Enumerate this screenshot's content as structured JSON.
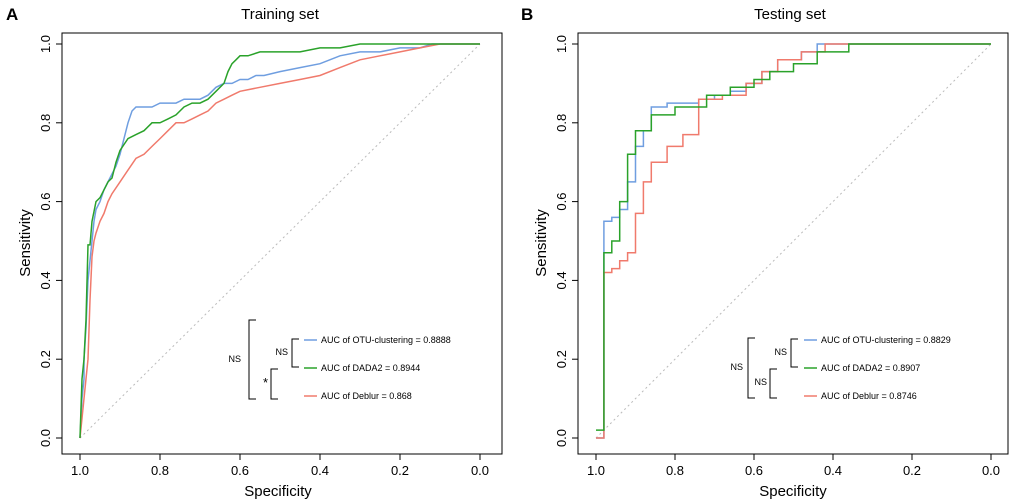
{
  "colors": {
    "otu": "#6f9ee0",
    "dada2": "#2aa22a",
    "deblur": "#f07a6c",
    "diagonal": "#bbbbbb",
    "axis": "#000000"
  },
  "chart_data": [
    {
      "type": "line",
      "panel_letter": "A",
      "title": "Training set",
      "xlabel": "Specificity",
      "ylabel": "Sensitivity",
      "xlim": [
        1.0,
        0.0
      ],
      "ylim": [
        0.0,
        1.0
      ],
      "x_ticks": [
        "1.0",
        "0.8",
        "0.6",
        "0.4",
        "0.2",
        "0.0"
      ],
      "y_ticks": [
        "0.0",
        "0.2",
        "0.4",
        "0.6",
        "0.8",
        "1.0"
      ],
      "diagonal": true,
      "legend_position": "bottom-right",
      "series": [
        {
          "key": "otu",
          "name": "AUC of OTU-clustering = 0.8888",
          "x": [
            1.0,
            0.995,
            0.99,
            0.99,
            0.985,
            0.98,
            0.975,
            0.97,
            0.965,
            0.96,
            0.95,
            0.94,
            0.93,
            0.92,
            0.91,
            0.9,
            0.89,
            0.88,
            0.87,
            0.86,
            0.85,
            0.84,
            0.83,
            0.82,
            0.8,
            0.78,
            0.76,
            0.74,
            0.72,
            0.7,
            0.68,
            0.66,
            0.64,
            0.62,
            0.6,
            0.58,
            0.56,
            0.54,
            0.5,
            0.45,
            0.4,
            0.35,
            0.3,
            0.25,
            0.2,
            0.15,
            0.12,
            0.0
          ],
          "y": [
            0.0,
            0.1,
            0.15,
            0.2,
            0.28,
            0.4,
            0.45,
            0.5,
            0.55,
            0.58,
            0.6,
            0.63,
            0.65,
            0.67,
            0.69,
            0.72,
            0.76,
            0.8,
            0.83,
            0.84,
            0.84,
            0.84,
            0.84,
            0.84,
            0.85,
            0.85,
            0.85,
            0.86,
            0.86,
            0.86,
            0.87,
            0.89,
            0.9,
            0.9,
            0.91,
            0.91,
            0.92,
            0.92,
            0.93,
            0.94,
            0.95,
            0.97,
            0.98,
            0.98,
            0.99,
            0.99,
            1.0,
            1.0
          ]
        },
        {
          "key": "dada2",
          "name": "AUC of DADA2 = 0.8944",
          "x": [
            1.0,
            0.995,
            0.99,
            0.985,
            0.98,
            0.975,
            0.97,
            0.96,
            0.95,
            0.94,
            0.93,
            0.92,
            0.91,
            0.9,
            0.88,
            0.86,
            0.84,
            0.82,
            0.8,
            0.78,
            0.76,
            0.74,
            0.72,
            0.7,
            0.68,
            0.66,
            0.64,
            0.63,
            0.62,
            0.61,
            0.6,
            0.58,
            0.55,
            0.5,
            0.45,
            0.4,
            0.35,
            0.3,
            0.25,
            0.2,
            0.15,
            0.1,
            0.0
          ],
          "y": [
            0.0,
            0.15,
            0.2,
            0.3,
            0.49,
            0.49,
            0.55,
            0.6,
            0.61,
            0.63,
            0.65,
            0.66,
            0.7,
            0.73,
            0.76,
            0.77,
            0.78,
            0.8,
            0.8,
            0.81,
            0.82,
            0.84,
            0.85,
            0.85,
            0.86,
            0.88,
            0.9,
            0.93,
            0.95,
            0.96,
            0.97,
            0.97,
            0.98,
            0.98,
            0.98,
            0.99,
            0.99,
            1.0,
            1.0,
            1.0,
            1.0,
            1.0,
            1.0
          ]
        },
        {
          "key": "deblur",
          "name": "AUC of  Deblur = 0.868",
          "x": [
            1.0,
            0.99,
            0.98,
            0.975,
            0.97,
            0.965,
            0.96,
            0.95,
            0.94,
            0.93,
            0.92,
            0.9,
            0.88,
            0.86,
            0.84,
            0.82,
            0.8,
            0.78,
            0.76,
            0.74,
            0.72,
            0.7,
            0.68,
            0.66,
            0.64,
            0.62,
            0.6,
            0.55,
            0.5,
            0.45,
            0.4,
            0.35,
            0.3,
            0.25,
            0.2,
            0.15,
            0.1,
            0.0
          ],
          "y": [
            0.0,
            0.1,
            0.2,
            0.35,
            0.46,
            0.5,
            0.52,
            0.55,
            0.57,
            0.6,
            0.62,
            0.65,
            0.68,
            0.71,
            0.72,
            0.74,
            0.76,
            0.78,
            0.8,
            0.8,
            0.81,
            0.82,
            0.83,
            0.85,
            0.86,
            0.87,
            0.88,
            0.89,
            0.9,
            0.91,
            0.92,
            0.94,
            0.96,
            0.97,
            0.98,
            0.99,
            1.0,
            1.0
          ]
        }
      ],
      "significance": {
        "outer": "NS",
        "top_pair": "NS",
        "bottom_pair": "*"
      }
    },
    {
      "type": "line",
      "panel_letter": "B",
      "title": "Testing set",
      "xlabel": "Specificity",
      "ylabel": "Sensitivity",
      "xlim": [
        1.0,
        0.0
      ],
      "ylim": [
        0.0,
        1.0
      ],
      "x_ticks": [
        "1.0",
        "0.8",
        "0.6",
        "0.4",
        "0.2",
        "0.0"
      ],
      "y_ticks": [
        "0.0",
        "0.2",
        "0.4",
        "0.6",
        "0.8",
        "1.0"
      ],
      "diagonal": true,
      "legend_position": "bottom-right",
      "series": [
        {
          "key": "otu",
          "name": "AUC of OTU-clustering = 0.8829",
          "x": [
            1.0,
            0.98,
            0.98,
            0.96,
            0.96,
            0.94,
            0.94,
            0.92,
            0.92,
            0.9,
            0.9,
            0.88,
            0.88,
            0.86,
            0.86,
            0.82,
            0.82,
            0.74,
            0.74,
            0.7,
            0.7,
            0.66,
            0.66,
            0.62,
            0.62,
            0.58,
            0.58,
            0.54,
            0.54,
            0.48,
            0.48,
            0.44,
            0.44,
            0.0
          ],
          "y": [
            0.0,
            0.0,
            0.55,
            0.55,
            0.56,
            0.56,
            0.58,
            0.58,
            0.65,
            0.65,
            0.74,
            0.74,
            0.78,
            0.78,
            0.84,
            0.84,
            0.85,
            0.85,
            0.86,
            0.86,
            0.87,
            0.87,
            0.88,
            0.88,
            0.9,
            0.9,
            0.93,
            0.93,
            0.96,
            0.96,
            0.98,
            0.98,
            1.0,
            1.0
          ]
        },
        {
          "key": "dada2",
          "name": "AUC of DADA2 = 0.8907",
          "x": [
            1.0,
            0.98,
            0.98,
            0.96,
            0.96,
            0.94,
            0.94,
            0.92,
            0.92,
            0.9,
            0.9,
            0.86,
            0.86,
            0.8,
            0.8,
            0.72,
            0.72,
            0.66,
            0.66,
            0.6,
            0.6,
            0.56,
            0.56,
            0.5,
            0.5,
            0.44,
            0.44,
            0.36,
            0.36,
            0.0
          ],
          "y": [
            0.02,
            0.02,
            0.47,
            0.47,
            0.5,
            0.5,
            0.6,
            0.6,
            0.72,
            0.72,
            0.78,
            0.78,
            0.82,
            0.82,
            0.84,
            0.84,
            0.87,
            0.87,
            0.89,
            0.89,
            0.91,
            0.91,
            0.93,
            0.93,
            0.95,
            0.95,
            0.98,
            0.98,
            1.0,
            1.0
          ]
        },
        {
          "key": "deblur",
          "name": "AUC of  Deblur = 0.8746",
          "x": [
            1.0,
            0.98,
            0.98,
            0.96,
            0.96,
            0.94,
            0.94,
            0.92,
            0.92,
            0.9,
            0.9,
            0.88,
            0.88,
            0.86,
            0.86,
            0.82,
            0.82,
            0.78,
            0.78,
            0.74,
            0.74,
            0.68,
            0.68,
            0.62,
            0.62,
            0.58,
            0.58,
            0.54,
            0.54,
            0.48,
            0.48,
            0.42,
            0.42,
            0.0
          ],
          "y": [
            0.0,
            0.0,
            0.42,
            0.42,
            0.43,
            0.43,
            0.45,
            0.45,
            0.47,
            0.47,
            0.57,
            0.57,
            0.65,
            0.65,
            0.7,
            0.7,
            0.74,
            0.74,
            0.77,
            0.77,
            0.86,
            0.86,
            0.87,
            0.87,
            0.9,
            0.9,
            0.93,
            0.93,
            0.96,
            0.96,
            0.98,
            0.98,
            1.0,
            1.0
          ]
        }
      ],
      "significance": {
        "outer": "NS",
        "top_pair": "NS",
        "bottom_pair": "NS"
      }
    }
  ]
}
